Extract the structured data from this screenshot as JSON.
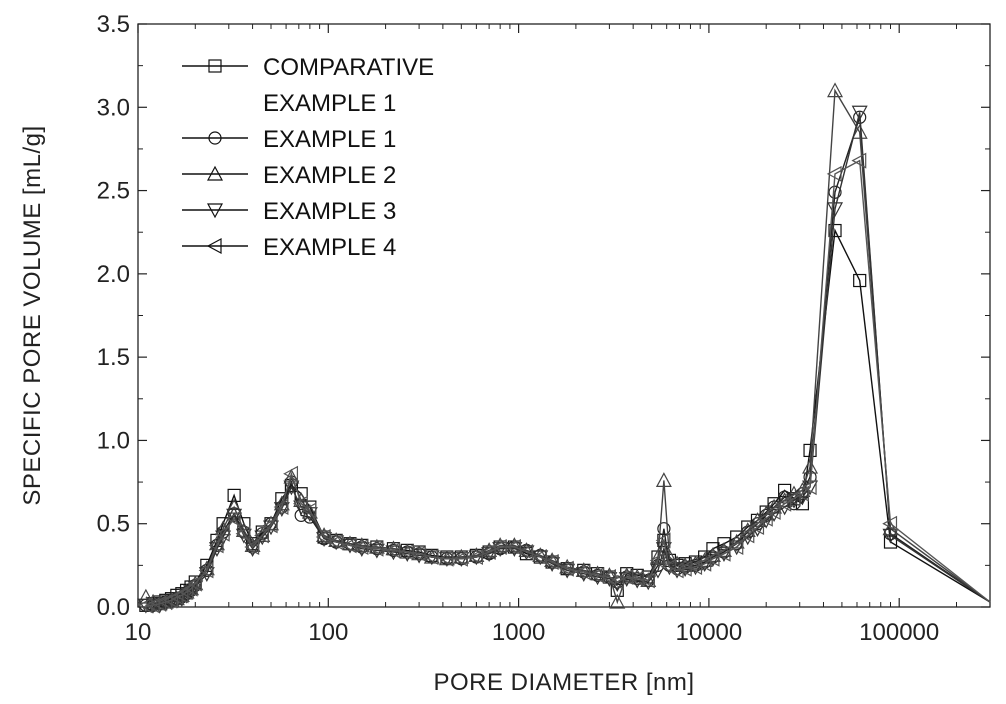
{
  "chart_data": {
    "type": "line",
    "xlabel": "PORE DIAMETER [nm]",
    "ylabel": "SPECIFIC PORE VOLUME [mL/g]",
    "x_scale": "log",
    "xlim": [
      10,
      300000
    ],
    "ylim": [
      0,
      3.5
    ],
    "x_ticks": [
      10,
      100,
      1000,
      10000,
      100000
    ],
    "x_tick_labels": [
      "10",
      "100",
      "1000",
      "10000",
      "100000"
    ],
    "y_ticks": [
      0.0,
      0.5,
      1.0,
      1.5,
      2.0,
      2.5,
      3.0,
      3.5
    ],
    "y_tick_labels": [
      "0.0",
      "0.5",
      "1.0",
      "1.5",
      "2.0",
      "2.5",
      "3.0",
      "3.5"
    ],
    "grid": false,
    "legend_position": "top-left",
    "series": [
      {
        "name": "COMPARATIVE EXAMPLE 1",
        "legend_lines": [
          "COMPARATIVE",
          "EXAMPLE 1"
        ],
        "marker": "square",
        "color": "#111111",
        "x": [
          11,
          12,
          13,
          14,
          15,
          16,
          17,
          18,
          19,
          20,
          23,
          26,
          28,
          32,
          36,
          40,
          45,
          50,
          57,
          64,
          72,
          80,
          95,
          110,
          130,
          150,
          180,
          220,
          260,
          300,
          350,
          420,
          500,
          600,
          700,
          800,
          950,
          1100,
          1300,
          1500,
          1800,
          2200,
          2600,
          3000,
          3300,
          3700,
          4200,
          4800,
          5400,
          5800,
          6200,
          6800,
          7500,
          8500,
          9500,
          10500,
          12000,
          14000,
          16000,
          18000,
          20000,
          22000,
          25000,
          28000,
          31000,
          34000,
          46000,
          62000,
          90000,
          300000
        ],
        "y": [
          0.01,
          0.02,
          0.03,
          0.04,
          0.05,
          0.07,
          0.08,
          0.1,
          0.12,
          0.15,
          0.25,
          0.4,
          0.5,
          0.67,
          0.5,
          0.38,
          0.45,
          0.5,
          0.65,
          0.73,
          0.68,
          0.6,
          0.42,
          0.4,
          0.38,
          0.37,
          0.36,
          0.35,
          0.34,
          0.33,
          0.31,
          0.3,
          0.3,
          0.31,
          0.33,
          0.36,
          0.36,
          0.32,
          0.3,
          0.27,
          0.23,
          0.22,
          0.2,
          0.18,
          0.1,
          0.2,
          0.19,
          0.18,
          0.3,
          0.4,
          0.28,
          0.25,
          0.26,
          0.27,
          0.3,
          0.35,
          0.38,
          0.42,
          0.48,
          0.52,
          0.57,
          0.62,
          0.7,
          0.65,
          0.62,
          0.94,
          2.26,
          1.96,
          0.39,
          0.03
        ]
      },
      {
        "name": "EXAMPLE 1",
        "legend_lines": [
          "EXAMPLE 1"
        ],
        "marker": "circle",
        "color": "#222222",
        "x": [
          11,
          12,
          13,
          14,
          15,
          16,
          17,
          18,
          19,
          20,
          23,
          26,
          28,
          32,
          36,
          40,
          45,
          50,
          57,
          64,
          72,
          80,
          95,
          110,
          130,
          150,
          180,
          220,
          260,
          300,
          350,
          420,
          500,
          600,
          700,
          800,
          950,
          1100,
          1300,
          1500,
          1800,
          2200,
          2600,
          3000,
          3300,
          3700,
          4200,
          4800,
          5400,
          5800,
          6200,
          6800,
          7500,
          8500,
          9500,
          10500,
          12000,
          14000,
          16000,
          18000,
          20000,
          22000,
          25000,
          28000,
          31000,
          34000,
          46000,
          62000,
          90000,
          300000
        ],
        "y": [
          0.01,
          0.01,
          0.02,
          0.03,
          0.04,
          0.05,
          0.06,
          0.08,
          0.1,
          0.13,
          0.22,
          0.37,
          0.45,
          0.56,
          0.45,
          0.36,
          0.44,
          0.5,
          0.6,
          0.75,
          0.55,
          0.54,
          0.41,
          0.39,
          0.38,
          0.36,
          0.35,
          0.34,
          0.33,
          0.32,
          0.3,
          0.29,
          0.29,
          0.3,
          0.32,
          0.35,
          0.36,
          0.34,
          0.31,
          0.27,
          0.23,
          0.21,
          0.19,
          0.18,
          0.15,
          0.18,
          0.17,
          0.16,
          0.25,
          0.47,
          0.25,
          0.23,
          0.24,
          0.25,
          0.27,
          0.3,
          0.33,
          0.38,
          0.45,
          0.5,
          0.55,
          0.6,
          0.66,
          0.62,
          0.68,
          0.78,
          2.49,
          2.94,
          0.44,
          0.03
        ]
      },
      {
        "name": "EXAMPLE 2",
        "legend_lines": [
          "EXAMPLE 2"
        ],
        "marker": "triangle-up",
        "color": "#444444",
        "x": [
          11,
          12,
          13,
          14,
          15,
          16,
          17,
          18,
          19,
          20,
          23,
          26,
          28,
          32,
          36,
          40,
          45,
          50,
          57,
          64,
          72,
          80,
          95,
          110,
          130,
          150,
          180,
          220,
          260,
          300,
          350,
          420,
          500,
          600,
          700,
          800,
          950,
          1100,
          1300,
          1500,
          1800,
          2200,
          2600,
          3000,
          3300,
          3700,
          4200,
          4800,
          5400,
          5800,
          6200,
          6800,
          7500,
          8500,
          9500,
          10500,
          12000,
          14000,
          16000,
          18000,
          20000,
          22000,
          25000,
          28000,
          31000,
          34000,
          46000,
          62000,
          90000,
          300000
        ],
        "y": [
          0.06,
          0.03,
          0.02,
          0.03,
          0.04,
          0.05,
          0.07,
          0.09,
          0.11,
          0.14,
          0.23,
          0.38,
          0.47,
          0.6,
          0.46,
          0.37,
          0.43,
          0.5,
          0.62,
          0.78,
          0.64,
          0.57,
          0.43,
          0.4,
          0.38,
          0.37,
          0.36,
          0.35,
          0.33,
          0.32,
          0.3,
          0.29,
          0.3,
          0.31,
          0.34,
          0.37,
          0.37,
          0.34,
          0.31,
          0.28,
          0.24,
          0.22,
          0.2,
          0.19,
          0.03,
          0.19,
          0.18,
          0.16,
          0.3,
          0.76,
          0.3,
          0.26,
          0.25,
          0.26,
          0.28,
          0.31,
          0.34,
          0.39,
          0.46,
          0.52,
          0.56,
          0.6,
          0.64,
          0.68,
          0.7,
          0.84,
          3.1,
          2.85,
          0.47,
          0.03
        ]
      },
      {
        "name": "EXAMPLE 3",
        "legend_lines": [
          "EXAMPLE 3"
        ],
        "marker": "triangle-down",
        "color": "#333333",
        "x": [
          11,
          12,
          13,
          14,
          15,
          16,
          17,
          18,
          19,
          20,
          23,
          26,
          28,
          32,
          36,
          40,
          45,
          50,
          57,
          64,
          72,
          80,
          95,
          110,
          130,
          150,
          180,
          220,
          260,
          300,
          350,
          420,
          500,
          600,
          700,
          800,
          950,
          1100,
          1300,
          1500,
          1800,
          2200,
          2600,
          3000,
          3300,
          3700,
          4200,
          4800,
          5400,
          5800,
          6200,
          6800,
          7500,
          8500,
          9500,
          10500,
          12000,
          14000,
          16000,
          18000,
          20000,
          22000,
          25000,
          28000,
          31000,
          34000,
          46000,
          62000,
          90000,
          300000
        ],
        "y": [
          0.01,
          0.01,
          0.01,
          0.02,
          0.03,
          0.04,
          0.05,
          0.07,
          0.09,
          0.12,
          0.2,
          0.35,
          0.42,
          0.55,
          0.43,
          0.35,
          0.42,
          0.48,
          0.59,
          0.72,
          0.6,
          0.56,
          0.41,
          0.39,
          0.37,
          0.35,
          0.34,
          0.33,
          0.32,
          0.31,
          0.3,
          0.29,
          0.29,
          0.3,
          0.32,
          0.35,
          0.35,
          0.33,
          0.3,
          0.26,
          0.22,
          0.2,
          0.18,
          0.17,
          0.14,
          0.17,
          0.16,
          0.15,
          0.22,
          0.35,
          0.24,
          0.22,
          0.23,
          0.24,
          0.26,
          0.29,
          0.32,
          0.36,
          0.42,
          0.47,
          0.52,
          0.56,
          0.6,
          0.64,
          0.66,
          0.72,
          2.39,
          2.97,
          0.43,
          0.03
        ]
      },
      {
        "name": "EXAMPLE 4",
        "legend_lines": [
          "EXAMPLE 4"
        ],
        "marker": "triangle-left",
        "color": "#555555",
        "x": [
          11,
          12,
          13,
          14,
          15,
          16,
          17,
          18,
          19,
          20,
          23,
          26,
          28,
          32,
          36,
          40,
          45,
          50,
          57,
          64,
          72,
          80,
          95,
          110,
          130,
          150,
          180,
          220,
          260,
          300,
          350,
          420,
          500,
          600,
          700,
          800,
          950,
          1100,
          1300,
          1500,
          1800,
          2200,
          2600,
          3000,
          3300,
          3700,
          4200,
          4800,
          5400,
          5800,
          6200,
          6800,
          7500,
          8500,
          9500,
          10500,
          12000,
          14000,
          16000,
          18000,
          20000,
          22000,
          25000,
          28000,
          31000,
          34000,
          46000,
          62000,
          90000,
          300000
        ],
        "y": [
          0.01,
          0.01,
          0.02,
          0.03,
          0.04,
          0.06,
          0.07,
          0.09,
          0.11,
          0.14,
          0.22,
          0.37,
          0.44,
          0.53,
          0.44,
          0.36,
          0.43,
          0.49,
          0.6,
          0.8,
          0.62,
          0.58,
          0.42,
          0.39,
          0.37,
          0.36,
          0.35,
          0.34,
          0.33,
          0.32,
          0.3,
          0.29,
          0.29,
          0.3,
          0.33,
          0.36,
          0.36,
          0.33,
          0.3,
          0.27,
          0.23,
          0.21,
          0.19,
          0.18,
          0.15,
          0.18,
          0.17,
          0.16,
          0.28,
          0.4,
          0.24,
          0.22,
          0.23,
          0.24,
          0.26,
          0.29,
          0.32,
          0.36,
          0.43,
          0.48,
          0.53,
          0.57,
          0.62,
          0.65,
          0.68,
          0.72,
          2.6,
          2.68,
          0.5,
          0.03
        ]
      }
    ]
  }
}
